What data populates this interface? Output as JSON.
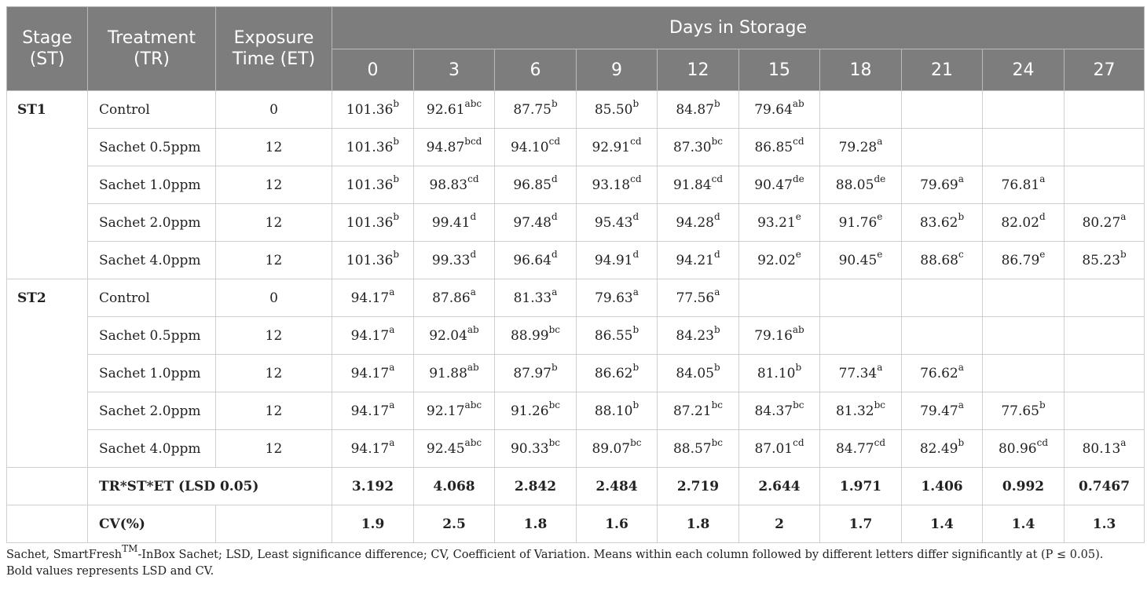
{
  "header": {
    "stage": "Stage (ST)",
    "treatment": "Treatment (TR)",
    "exposure": "Exposure Time (ET)",
    "days": "Days in Storage",
    "day_cols": [
      "0",
      "3",
      "6",
      "9",
      "12",
      "15",
      "18",
      "21",
      "24",
      "27"
    ]
  },
  "groups": [
    {
      "stage": "ST1",
      "rows": [
        {
          "treatment": "Control",
          "exposure": "0",
          "cells": [
            {
              "v": "101.36",
              "s": "b"
            },
            {
              "v": "92.61",
              "s": "abc"
            },
            {
              "v": "87.75",
              "s": "b"
            },
            {
              "v": "85.50",
              "s": "b"
            },
            {
              "v": "84.87",
              "s": "b"
            },
            {
              "v": "79.64",
              "s": "ab"
            },
            {
              "v": "",
              "s": ""
            },
            {
              "v": "",
              "s": ""
            },
            {
              "v": "",
              "s": ""
            },
            {
              "v": "",
              "s": ""
            }
          ]
        },
        {
          "treatment": "Sachet 0.5ppm",
          "exposure": "12",
          "cells": [
            {
              "v": "101.36",
              "s": "b"
            },
            {
              "v": "94.87",
              "s": "bcd"
            },
            {
              "v": "94.10",
              "s": "cd"
            },
            {
              "v": "92.91",
              "s": "cd"
            },
            {
              "v": "87.30",
              "s": "bc"
            },
            {
              "v": "86.85",
              "s": "cd"
            },
            {
              "v": "79.28",
              "s": "a"
            },
            {
              "v": "",
              "s": ""
            },
            {
              "v": "",
              "s": ""
            },
            {
              "v": "",
              "s": ""
            }
          ]
        },
        {
          "treatment": "Sachet 1.0ppm",
          "exposure": "12",
          "cells": [
            {
              "v": "101.36",
              "s": "b"
            },
            {
              "v": "98.83",
              "s": "cd"
            },
            {
              "v": "96.85",
              "s": "d"
            },
            {
              "v": "93.18",
              "s": "cd"
            },
            {
              "v": "91.84",
              "s": "cd"
            },
            {
              "v": "90.47",
              "s": "de"
            },
            {
              "v": "88.05",
              "s": "de"
            },
            {
              "v": "79.69",
              "s": "a"
            },
            {
              "v": "76.81",
              "s": "a"
            },
            {
              "v": "",
              "s": ""
            }
          ]
        },
        {
          "treatment": "Sachet 2.0ppm",
          "exposure": "12",
          "cells": [
            {
              "v": "101.36",
              "s": "b"
            },
            {
              "v": "99.41",
              "s": "d"
            },
            {
              "v": "97.48",
              "s": "d"
            },
            {
              "v": "95.43",
              "s": "d"
            },
            {
              "v": "94.28",
              "s": "d"
            },
            {
              "v": "93.21",
              "s": "e"
            },
            {
              "v": "91.76",
              "s": "e"
            },
            {
              "v": "83.62",
              "s": "b"
            },
            {
              "v": "82.02",
              "s": "d"
            },
            {
              "v": "80.27",
              "s": "a"
            }
          ]
        },
        {
          "treatment": "Sachet 4.0ppm",
          "exposure": "12",
          "cells": [
            {
              "v": "101.36",
              "s": "b"
            },
            {
              "v": "99.33",
              "s": "d"
            },
            {
              "v": "96.64",
              "s": "d"
            },
            {
              "v": "94.91",
              "s": "d"
            },
            {
              "v": "94.21",
              "s": "d"
            },
            {
              "v": "92.02",
              "s": "e"
            },
            {
              "v": "90.45",
              "s": "e"
            },
            {
              "v": "88.68",
              "s": "c"
            },
            {
              "v": "86.79",
              "s": "e"
            },
            {
              "v": "85.23",
              "s": "b"
            }
          ]
        }
      ]
    },
    {
      "stage": "ST2",
      "rows": [
        {
          "treatment": "Control",
          "exposure": "0",
          "cells": [
            {
              "v": "94.17",
              "s": "a"
            },
            {
              "v": "87.86",
              "s": "a"
            },
            {
              "v": "81.33",
              "s": "a"
            },
            {
              "v": "79.63",
              "s": "a"
            },
            {
              "v": "77.56",
              "s": "a"
            },
            {
              "v": "",
              "s": ""
            },
            {
              "v": "",
              "s": ""
            },
            {
              "v": "",
              "s": ""
            },
            {
              "v": "",
              "s": ""
            },
            {
              "v": "",
              "s": ""
            }
          ]
        },
        {
          "treatment": "Sachet 0.5ppm",
          "exposure": "12",
          "cells": [
            {
              "v": "94.17",
              "s": "a"
            },
            {
              "v": "92.04",
              "s": "ab"
            },
            {
              "v": "88.99",
              "s": "bc"
            },
            {
              "v": "86.55",
              "s": "b"
            },
            {
              "v": "84.23",
              "s": "b"
            },
            {
              "v": "79.16",
              "s": "ab"
            },
            {
              "v": "",
              "s": ""
            },
            {
              "v": "",
              "s": ""
            },
            {
              "v": "",
              "s": ""
            },
            {
              "v": "",
              "s": ""
            }
          ]
        },
        {
          "treatment": "Sachet 1.0ppm",
          "exposure": "12",
          "cells": [
            {
              "v": "94.17",
              "s": "a"
            },
            {
              "v": "91.88",
              "s": "ab"
            },
            {
              "v": "87.97",
              "s": "b"
            },
            {
              "v": "86.62",
              "s": "b"
            },
            {
              "v": "84.05",
              "s": "b"
            },
            {
              "v": "81.10",
              "s": "b"
            },
            {
              "v": "77.34",
              "s": "a"
            },
            {
              "v": "76.62",
              "s": "a"
            },
            {
              "v": "",
              "s": ""
            },
            {
              "v": "",
              "s": ""
            }
          ]
        },
        {
          "treatment": "Sachet 2.0ppm",
          "exposure": "12",
          "cells": [
            {
              "v": "94.17",
              "s": "a"
            },
            {
              "v": "92.17",
              "s": "abc"
            },
            {
              "v": "91.26",
              "s": "bc"
            },
            {
              "v": "88.10",
              "s": "b"
            },
            {
              "v": "87.21",
              "s": "bc"
            },
            {
              "v": "84.37",
              "s": "bc"
            },
            {
              "v": "81.32",
              "s": "bc"
            },
            {
              "v": "79.47",
              "s": "a"
            },
            {
              "v": "77.65",
              "s": "b"
            },
            {
              "v": "",
              "s": ""
            }
          ]
        },
        {
          "treatment": "Sachet 4.0ppm",
          "exposure": "12",
          "cells": [
            {
              "v": "94.17",
              "s": "a"
            },
            {
              "v": "92.45",
              "s": "abc"
            },
            {
              "v": "90.33",
              "s": "bc"
            },
            {
              "v": "89.07",
              "s": "bc"
            },
            {
              "v": "88.57",
              "s": "bc"
            },
            {
              "v": "87.01",
              "s": "cd"
            },
            {
              "v": "84.77",
              "s": "cd"
            },
            {
              "v": "82.49",
              "s": "b"
            },
            {
              "v": "80.96",
              "s": "cd"
            },
            {
              "v": "80.13",
              "s": "a"
            }
          ]
        }
      ]
    }
  ],
  "summary": [
    {
      "label": "TR*ST*ET (LSD 0.05)",
      "values": [
        "3.192",
        "4.068",
        "2.842",
        "2.484",
        "2.719",
        "2.644",
        "1.971",
        "1.406",
        "0.992",
        "0.7467"
      ]
    },
    {
      "label": "CV(%)",
      "values": [
        "1.9",
        "2.5",
        "1.8",
        "1.6",
        "1.8",
        "2",
        "1.7",
        "1.4",
        "1.4",
        "1.3"
      ]
    }
  ],
  "footnote": {
    "part1": "Sachet, SmartFresh",
    "tm": "TM",
    "part2": "-InBox Sachet; LSD, Least significance difference; CV, Coefficient of Variation. Means within each column followed by different letters differ significantly at (P ≤ 0.05).",
    "line2": "Bold values represents LSD and CV."
  },
  "colors": {
    "header_bg": "#7d7d7d",
    "border": "#cfcfcf"
  }
}
